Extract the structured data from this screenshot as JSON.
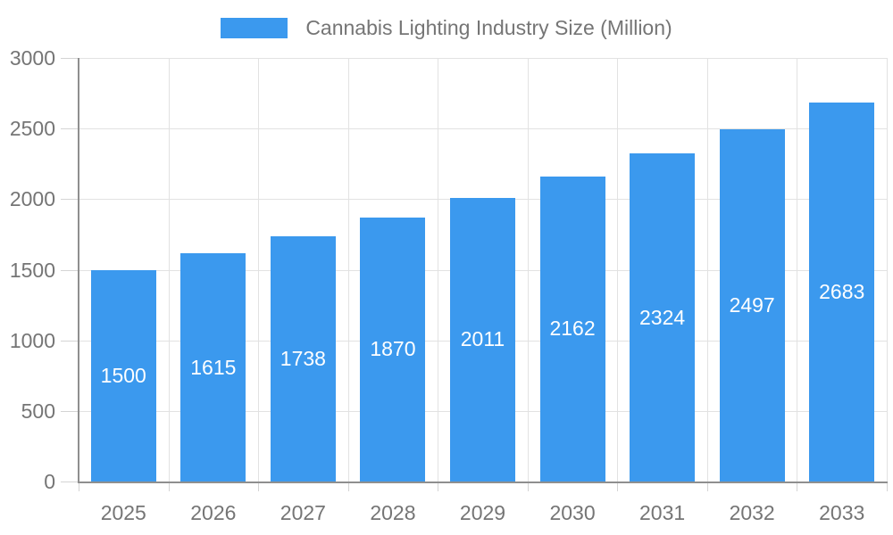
{
  "legend": {
    "label": "Cannabis Lighting Industry Size (Million)"
  },
  "colors": {
    "bar": "#3B99EE",
    "grid": "#E2E2E2",
    "axis": "#8F8F8F",
    "tick": "#D4D4D4",
    "text": "#757575",
    "bar_label": "#FFFFFF",
    "background": "#FFFFFF"
  },
  "chart_data": {
    "type": "bar",
    "title": "Cannabis Lighting Industry Size (Million)",
    "categories": [
      "2025",
      "2026",
      "2027",
      "2028",
      "2029",
      "2030",
      "2031",
      "2032",
      "2033"
    ],
    "values": [
      1500,
      1615,
      1738,
      1870,
      2011,
      2162,
      2324,
      2497,
      2683
    ],
    "xlabel": "",
    "ylabel": "",
    "ylim": [
      0,
      3000
    ],
    "ytick_step": 500,
    "yticks": [
      "0",
      "500",
      "1000",
      "1500",
      "2000",
      "2500",
      "3000"
    ],
    "grid": true,
    "legend_position": "top",
    "value_labels": "inside-center"
  }
}
